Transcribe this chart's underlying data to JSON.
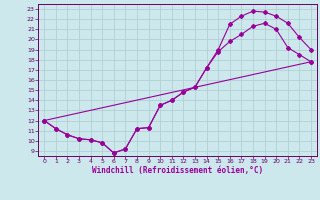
{
  "title": "",
  "xlabel": "Windchill (Refroidissement éolien,°C)",
  "bg_color": "#cce8ec",
  "grid_color": "#aacccc",
  "line_color": "#990099",
  "xlim": [
    -0.5,
    23.5
  ],
  "ylim": [
    8.5,
    23.5
  ],
  "xticks": [
    0,
    1,
    2,
    3,
    4,
    5,
    6,
    7,
    8,
    9,
    10,
    11,
    12,
    13,
    14,
    15,
    16,
    17,
    18,
    19,
    20,
    21,
    22,
    23
  ],
  "yticks": [
    9,
    10,
    11,
    12,
    13,
    14,
    15,
    16,
    17,
    18,
    19,
    20,
    21,
    22,
    23
  ],
  "line1_x": [
    0,
    1,
    2,
    3,
    4,
    5,
    6,
    7,
    8,
    9,
    10,
    11,
    12,
    13,
    14,
    15,
    16,
    17,
    18,
    19,
    20,
    21,
    22,
    23
  ],
  "line1_y": [
    12,
    11.2,
    10.6,
    10.2,
    10.1,
    9.8,
    8.8,
    9.2,
    11.2,
    11.3,
    13.5,
    14.0,
    14.8,
    15.3,
    17.2,
    19.0,
    21.5,
    22.3,
    22.8,
    22.7,
    22.3,
    21.6,
    20.2,
    19.0
  ],
  "line2_x": [
    0,
    1,
    2,
    3,
    4,
    5,
    6,
    7,
    8,
    9,
    10,
    11,
    12,
    13,
    14,
    15,
    16,
    17,
    18,
    19,
    20,
    21,
    22,
    23
  ],
  "line2_y": [
    12,
    11.2,
    10.6,
    10.2,
    10.1,
    9.8,
    8.8,
    9.2,
    11.2,
    11.3,
    13.5,
    14.0,
    14.8,
    15.3,
    17.2,
    18.8,
    19.8,
    20.5,
    21.3,
    21.6,
    21.0,
    19.2,
    18.5,
    17.8
  ],
  "line3_x": [
    0,
    23
  ],
  "line3_y": [
    12,
    17.8
  ]
}
